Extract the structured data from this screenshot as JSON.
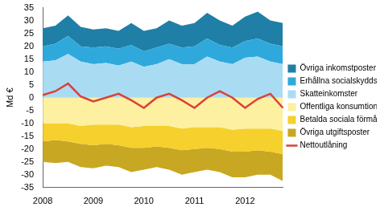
{
  "chart_data": {
    "type": "area",
    "y_label": "Md €",
    "categories": [
      "2008",
      null,
      null,
      null,
      "2009",
      null,
      null,
      null,
      "2010",
      null,
      null,
      null,
      "2011",
      null,
      null,
      null,
      "2012",
      null,
      null,
      null
    ],
    "ylim": [
      -35,
      35
    ],
    "yticks": [
      -35,
      -30,
      -25,
      -20,
      -15,
      -10,
      -5,
      0,
      5,
      10,
      15,
      20,
      25,
      30,
      35
    ],
    "grid": false,
    "stacked": true,
    "legend": "right",
    "series": [
      {
        "name": "Övriga inkomstposter",
        "color": "#1f7fa6",
        "type": "area",
        "values": [
          7,
          7,
          8,
          7.5,
          7,
          7,
          7,
          8.5,
          8,
          7.5,
          9,
          8.5,
          9,
          10,
          9.5,
          8.5,
          9.5,
          10.5,
          9,
          9
        ]
      },
      {
        "name": "Erhållna socialskyddsavgifter",
        "color": "#2fa9dc",
        "type": "area",
        "values": [
          6,
          6.5,
          7,
          6,
          6.5,
          6.5,
          6.5,
          6.5,
          6,
          6.5,
          6,
          6.5,
          7,
          7,
          6.5,
          6.5,
          6.5,
          7,
          7,
          7
        ]
      },
      {
        "name": "Skatteinkomster",
        "color": "#a9dcf3",
        "type": "area",
        "values": [
          14,
          14.5,
          17,
          14,
          13,
          13.5,
          12.5,
          14,
          12,
          13,
          15,
          13,
          13,
          16,
          14,
          13,
          15.5,
          16,
          14,
          13
        ]
      },
      {
        "name": "Offentliga konsumtionsutgifter",
        "color": "#fdf0a0",
        "type": "area",
        "values": [
          -10,
          -10,
          -10,
          -11,
          -10.5,
          -10.5,
          -10.5,
          -11.5,
          -11,
          -11,
          -11,
          -12,
          -11.5,
          -11.5,
          -11.5,
          -12.5,
          -12,
          -12,
          -12,
          -13
        ]
      },
      {
        "name": "Betalda sociala förmåner",
        "color": "#f6d02c",
        "type": "area",
        "values": [
          -7,
          -6.5,
          -7,
          -7,
          -8,
          -7.5,
          -8,
          -8,
          -8.5,
          -8,
          -8.5,
          -8.5,
          -8.5,
          -8,
          -8.5,
          -8.5,
          -9,
          -8.5,
          -9,
          -9
        ]
      },
      {
        "name": "Övriga utgiftsposter",
        "color": "#c8a822",
        "type": "area",
        "values": [
          -8,
          -9,
          -8,
          -9,
          -9,
          -8.5,
          -8.5,
          -9.5,
          -8.5,
          -8,
          -8.5,
          -9.5,
          -9,
          -8.5,
          -9,
          -10,
          -10,
          -9.5,
          -9,
          -10.5
        ]
      },
      {
        "name": "Nettoutlåning",
        "color": "#d9413a",
        "type": "line",
        "values": [
          1,
          2.5,
          5.5,
          0.5,
          -1.5,
          0,
          1.5,
          -1,
          -4,
          0,
          1.5,
          -1,
          -4,
          0,
          2.5,
          0,
          -4,
          -0.5,
          1.5,
          -4
        ]
      }
    ]
  }
}
